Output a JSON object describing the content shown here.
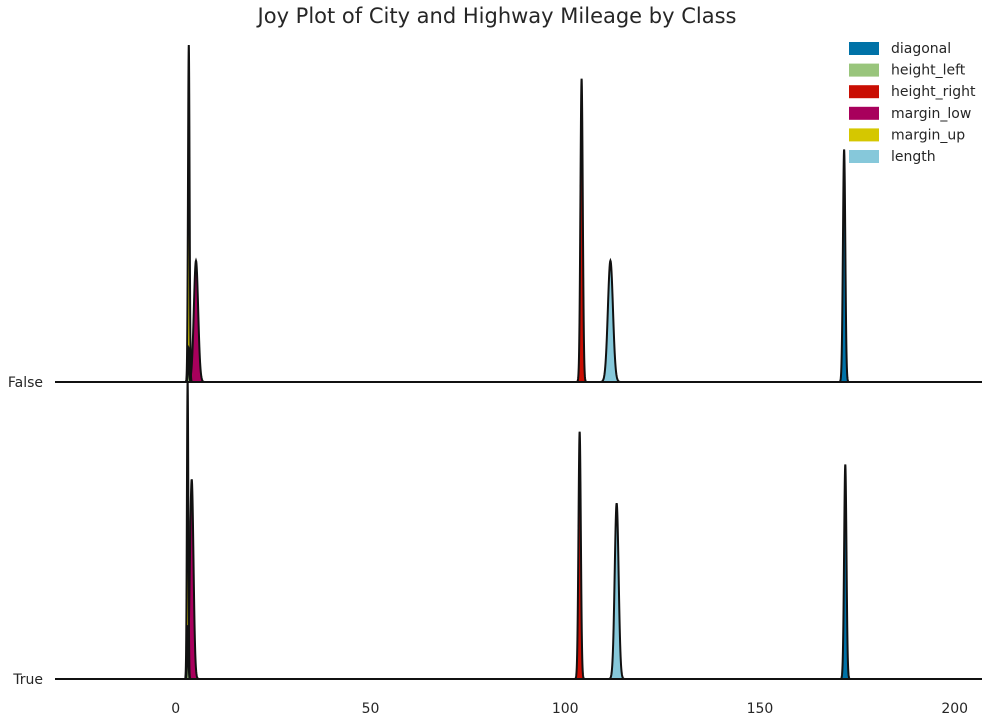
{
  "chart_data": {
    "type": "area",
    "subtype": "joy-plot",
    "title": "Joy Plot of City and Highway Mileage by Class",
    "xlabel": "",
    "ylabel": "",
    "xlim": [
      -31,
      207
    ],
    "x_ticks": [
      0,
      50,
      100,
      150,
      200
    ],
    "x_tick_labels": [
      "0",
      "50",
      "100",
      "150",
      "200"
    ],
    "rows": [
      "False",
      "True"
    ],
    "grid": false,
    "legend_position": "top-right",
    "series": [
      {
        "name": "diagonal",
        "color": "#0072a7",
        "peaks": {
          "False": {
            "center": 171.6,
            "sd": 0.3,
            "height": 0.69
          },
          "True": {
            "center": 171.9,
            "sd": 0.3,
            "height": 0.72
          }
        }
      },
      {
        "name": "height_left",
        "color": "#99c57c",
        "peaks": {
          "False": {
            "center": 3.3,
            "sd": 0.15,
            "height": 0.1
          },
          "True": {
            "center": 3.1,
            "sd": 0.15,
            "height": 0.18
          }
        }
      },
      {
        "name": "height_right",
        "color": "#c90e03",
        "peaks": {
          "False": {
            "center": 104.2,
            "sd": 0.3,
            "height": 0.9
          },
          "True": {
            "center": 103.7,
            "sd": 0.3,
            "height": 0.83
          }
        }
      },
      {
        "name": "margin_low",
        "color": "#a8005c",
        "peaks": {
          "False": {
            "center": 5.2,
            "sd": 0.55,
            "height": 0.36
          },
          "True": {
            "center": 4.1,
            "sd": 0.45,
            "height": 0.67
          }
        }
      },
      {
        "name": "margin_up",
        "color": "#d5c700",
        "peaks": {
          "False": {
            "center": 3.35,
            "sd": 0.2,
            "height": 1.0
          },
          "True": {
            "center": 3.05,
            "sd": 0.18,
            "height": 1.0
          }
        }
      },
      {
        "name": "length",
        "color": "#86c8da",
        "peaks": {
          "False": {
            "center": 111.6,
            "sd": 0.65,
            "height": 0.36
          },
          "True": {
            "center": 113.2,
            "sd": 0.5,
            "height": 0.59
          }
        }
      }
    ]
  }
}
